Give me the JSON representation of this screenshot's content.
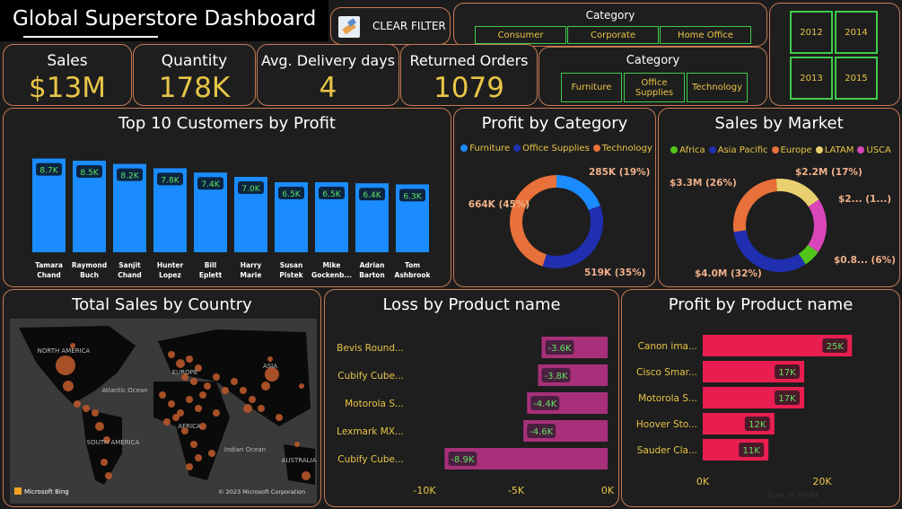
{
  "header": {
    "title": "Global Superstore Dashboard",
    "clear_filter": "CLEAR FILTER",
    "clear_filter_icon": "eraser-icon"
  },
  "segment_slicer": {
    "header": "Category",
    "options": [
      "Consumer",
      "Corporate",
      "Home Office"
    ]
  },
  "category_slicer": {
    "header": "Category",
    "options": [
      "Furniture",
      "Office Supplies",
      "Technology"
    ]
  },
  "year_slicer": {
    "options": [
      "2012",
      "2014",
      "2013",
      "2015"
    ]
  },
  "kpis": [
    {
      "label": "Sales",
      "value": "$13M"
    },
    {
      "label": "Quantity",
      "value": "178K"
    },
    {
      "label": "Avg. Delivery days",
      "value": "4"
    },
    {
      "label": "Returned Orders",
      "value": "1079"
    }
  ],
  "colors": {
    "accent_border": "#c47a55",
    "kpi_value": "#e8c547",
    "slicer_border": "#3ecb4a",
    "data_label": "#5fe35f"
  },
  "chart_data": [
    {
      "type": "bar",
      "title": "Top 10 Customers by Profit",
      "categories": [
        "Tamara Chand",
        "Raymond Buch",
        "Sanjit Chand",
        "Hunter Lopez",
        "Bill Eplett",
        "Harry Marie",
        "Susan Pistek",
        "Mike Gockenb...",
        "Adrian Barton",
        "Tom Ashbrook"
      ],
      "values": [
        8.7,
        8.5,
        8.2,
        7.8,
        7.4,
        7.0,
        6.5,
        6.5,
        6.4,
        6.3
      ],
      "data_labels": [
        "8.7K",
        "8.5K",
        "8.2K",
        "7.8K",
        "7.4K",
        "7.0K",
        "6.5K",
        "6.5K",
        "6.4K",
        "6.3K"
      ],
      "color": "#1a8cff"
    },
    {
      "type": "pie",
      "title": "Profit by Category",
      "legend": "top",
      "series": [
        {
          "name": "Furniture",
          "value": 285,
          "label": "285K (19%)",
          "color": "#1a8cff"
        },
        {
          "name": "Office Supplies",
          "value": 519,
          "label": "519K (35%)",
          "color": "#1f2fb0"
        },
        {
          "name": "Technology",
          "value": 664,
          "label": "664K (45%)",
          "color": "#e8703a"
        }
      ]
    },
    {
      "type": "pie",
      "title": "Sales by Market",
      "legend": "top",
      "series": [
        {
          "name": "Africa",
          "value": 6,
          "label": "$0.8... (6%)",
          "color": "#52c41a"
        },
        {
          "name": "Asia Pacific",
          "value": 32,
          "label": "$4.0M (32%)",
          "color": "#1f2fb0"
        },
        {
          "name": "Europe",
          "value": 26,
          "label": "$3.3M (26%)",
          "color": "#e8703a"
        },
        {
          "name": "LATAM",
          "value": 17,
          "label": "$2.2M (17%)",
          "color": "#e8d070"
        },
        {
          "name": "USCA",
          "value": 19,
          "label": "$2... (1...)",
          "color": "#d946b8"
        }
      ]
    },
    {
      "type": "bar",
      "orientation": "horizontal",
      "title": "Loss by Product name",
      "categories": [
        "Bevis Round...",
        "Cubify Cube...",
        "Motorola S...",
        "Lexmark MX...",
        "Cubify Cube..."
      ],
      "values": [
        -3.6,
        -3.8,
        -4.4,
        -4.6,
        -8.9
      ],
      "data_labels": [
        "-3.6K",
        "-3.8K",
        "-4.4K",
        "-4.6K",
        "-8.9K"
      ],
      "xticks": [
        "-10K",
        "-5K",
        "0K"
      ],
      "xlim": [
        -10,
        0
      ],
      "color": "#a8307a"
    },
    {
      "type": "bar",
      "orientation": "horizontal",
      "title": "Profit by Product name",
      "categories": [
        "Canon ima...",
        "Cisco Smar...",
        "Motorola S...",
        "Hoover Sto...",
        "Sauder Cla..."
      ],
      "values": [
        25,
        17,
        17,
        12,
        11
      ],
      "data_labels": [
        "25K",
        "17K",
        "17K",
        "12K",
        "11K"
      ],
      "xticks": [
        "0K",
        "20K"
      ],
      "xlabel": "Sum of Profit",
      "color": "#e81e50"
    }
  ],
  "map": {
    "title": "Total Sales by Country",
    "labels": [
      "NORTH AMERICA",
      "Atlantic Ocean",
      "EUROPE",
      "ASIA",
      "AFRICA",
      "SOUTH AMERICA",
      "Indian Ocean",
      "AUSTRALIA"
    ],
    "attribution": "Microsoft Bing",
    "copyright": "© 2023 Microsoft Corporation"
  }
}
